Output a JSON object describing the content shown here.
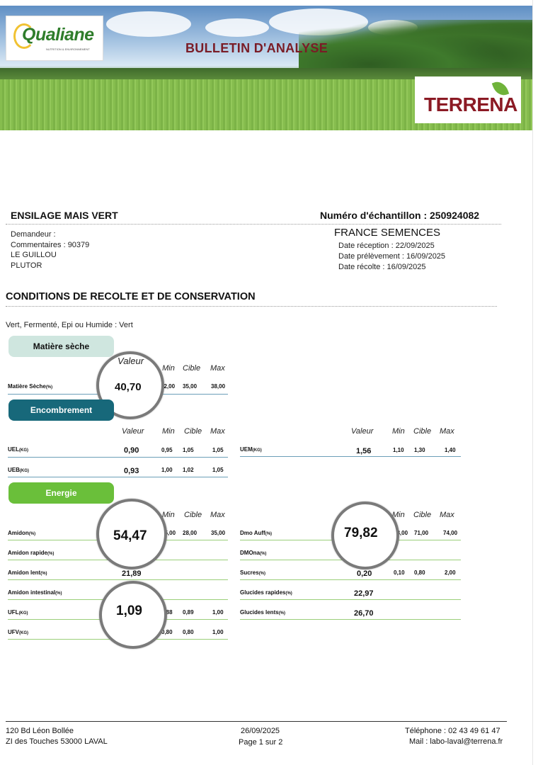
{
  "header": {
    "title": "BULLETIN D'ANALYSE",
    "logo_left": "Qualiane",
    "logo_left_sub": "NUTRITION & ENVIRONNEMENT",
    "logo_right": "TERRENA"
  },
  "product": {
    "name": "ENSILAGE MAIS VERT",
    "sample_number": "Numéro d'échantillon : 250924082"
  },
  "client": {
    "demandeur": "Demandeur :",
    "commentaires": "Commentaires : 90379",
    "line3": "LE GUILLOU",
    "line4": "PLUTOR"
  },
  "lab": {
    "name": "FRANCE SEMENCES",
    "date_reception": "Date réception : 22/09/2025",
    "date_prelevement": "Date prélèvement : 16/09/2025",
    "date_recolte": "Date récolte : 16/09/2025"
  },
  "conditions": {
    "title": "CONDITIONS DE RECOLTE ET DE CONSERVATION",
    "text": "Vert, Fermenté, Epi ou Humide : Vert"
  },
  "columns": {
    "valeur": "Valeur",
    "min": "Min",
    "cible": "Cible",
    "max": "Max"
  },
  "matiere_seche": {
    "section": "Matière sèche",
    "label": "Matière Sèche",
    "unit": "(%)",
    "valeur": "40,70",
    "min": "32,00",
    "cible": "35,00",
    "max": "38,00"
  },
  "encombrement": {
    "section": "Encombrement",
    "uel": {
      "label": "UEL",
      "unit": "(KG)",
      "valeur": "0,90",
      "min": "0,95",
      "cible": "1,05",
      "max": "1,05"
    },
    "ueb": {
      "label": "UEB",
      "unit": "(KG)",
      "valeur": "0,93",
      "min": "1,00",
      "cible": "1,02",
      "max": "1,05"
    },
    "uem": {
      "label": "UEM",
      "unit": "(KG)",
      "valeur": "1,56",
      "min": "1,10",
      "cible": "1,30",
      "max": "1,40"
    }
  },
  "energie": {
    "section": "Energie",
    "amidon": {
      "label": "Amidon",
      "unit": "(%)",
      "valeur": "54,47",
      "min": "25,00",
      "cible": "28,00",
      "max": "35,00"
    },
    "amidon_rapide": {
      "label": "Amidon rapide",
      "unit": "(%)"
    },
    "amidon_lent": {
      "label": "Amidon lent",
      "unit": "(%)",
      "valeur": "21,89"
    },
    "amidon_intestinal": {
      "label": "Amidon intestinal",
      "unit": "(%)"
    },
    "ufl": {
      "label": "UFL",
      "unit": "(KG)",
      "valeur": "1,09",
      "min": "0,88",
      "cible": "0,89",
      "max": "1,00"
    },
    "ufv": {
      "label": "UFV",
      "unit": "(KG)",
      "min": "0,80",
      "cible": "0,80",
      "max": "1,00"
    },
    "dmo_auff": {
      "label": "Dmo Auff",
      "unit": "(%)",
      "valeur": "79,82",
      "min": "68,00",
      "cible": "71,00",
      "max": "74,00"
    },
    "dmona": {
      "label": "DMOna",
      "unit": "(%)"
    },
    "sucres": {
      "label": "Sucres",
      "unit": "(%)",
      "valeur": "0,20",
      "min": "0,10",
      "cible": "0,80",
      "max": "2,00"
    },
    "glucides_rapides": {
      "label": "Glucides rapides",
      "unit": "(%)",
      "valeur": "22,97"
    },
    "glucides_lents": {
      "label": "Glucides lents",
      "unit": "(%)",
      "valeur": "26,70"
    }
  },
  "footer": {
    "address1": "120 Bd Léon Bollée",
    "address2": "ZI des Touches 53000 LAVAL",
    "date": "26/09/2025",
    "page": "Page 1 sur 2",
    "phone": "Téléphone :  02 43 49 61 47",
    "mail": "Mail : labo-laval@terrena.fr"
  },
  "colors": {
    "title_red": "#7a1c26",
    "pill_light": "#cfe6df",
    "pill_teal": "#17687a",
    "pill_green": "#6abf3a"
  }
}
